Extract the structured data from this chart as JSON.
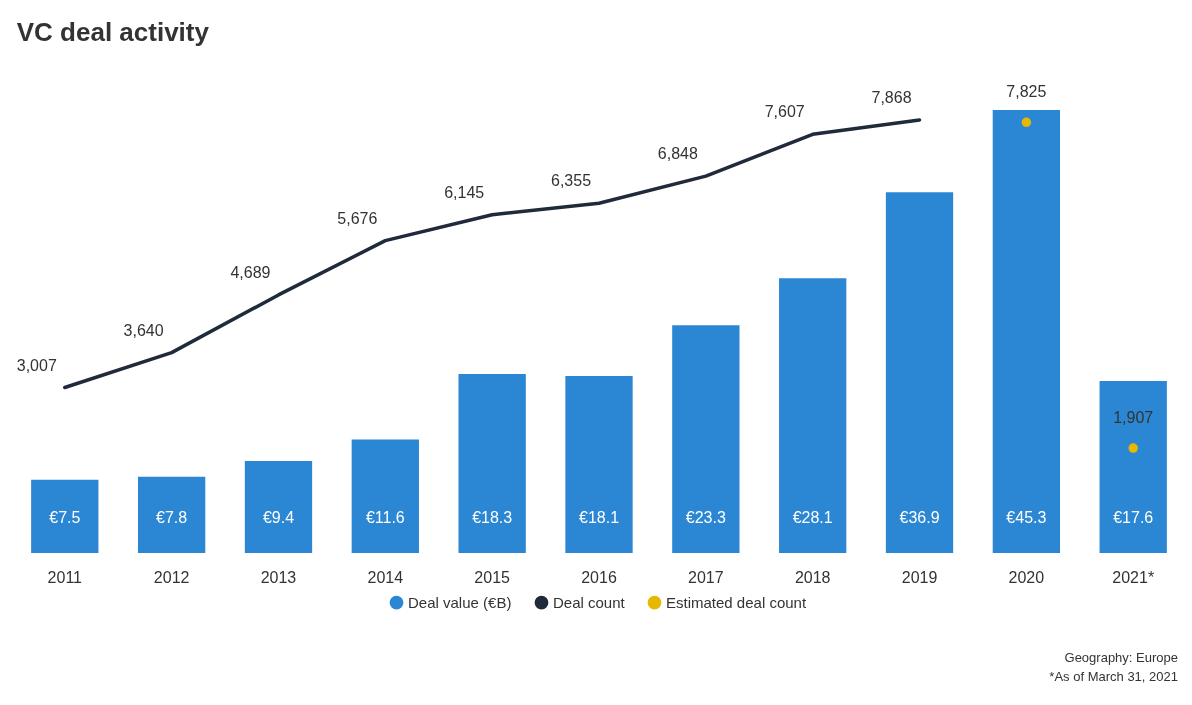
{
  "chart_data": {
    "type": "bar",
    "title": "VC deal activity",
    "categories": [
      "2011",
      "2012",
      "2013",
      "2014",
      "2015",
      "2016",
      "2017",
      "2018",
      "2019",
      "2020",
      "2021*"
    ],
    "series": [
      {
        "name": "Deal value (€B)",
        "color": "#2b87d3",
        "values": [
          7.5,
          7.8,
          9.4,
          11.6,
          18.3,
          18.1,
          23.3,
          28.1,
          36.9,
          45.3,
          17.6
        ],
        "value_labels": [
          "€7.5",
          "€7.8",
          "€9.4",
          "€11.6",
          "€18.3",
          "€18.1",
          "€23.3",
          "€28.1",
          "€36.9",
          "€45.3",
          "€17.6"
        ]
      },
      {
        "name": "Deal count",
        "type": "line",
        "axis": "y2",
        "color": "#1f2a3a",
        "values": [
          3007,
          3640,
          4689,
          5676,
          6145,
          6355,
          6848,
          7607,
          7868,
          null,
          null
        ],
        "value_labels": [
          "3,007",
          "3,640",
          "4,689",
          "5,676",
          "6,145",
          "6,355",
          "6,848",
          "7,607",
          "7,868",
          null,
          null
        ]
      },
      {
        "name": "Estimated deal count",
        "type": "scatter",
        "axis": "y2",
        "color": "#e6b800",
        "values": [
          null,
          null,
          null,
          null,
          null,
          null,
          null,
          null,
          null,
          7825,
          1907
        ],
        "value_labels": [
          null,
          null,
          null,
          null,
          null,
          null,
          null,
          null,
          null,
          "7,825",
          "1,907"
        ]
      }
    ],
    "legend": "bottom",
    "annotations": [
      "Geography: Europe",
      "*As of March 31, 2021"
    ]
  }
}
